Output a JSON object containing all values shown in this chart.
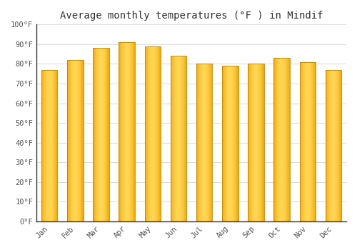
{
  "title": "Average monthly temperatures (°F ) in Mindif",
  "months": [
    "Jan",
    "Feb",
    "Mar",
    "Apr",
    "May",
    "Jun",
    "Jul",
    "Aug",
    "Sep",
    "Oct",
    "Nov",
    "Dec"
  ],
  "values": [
    77,
    82,
    88,
    91,
    89,
    84,
    80,
    79,
    80,
    83,
    81,
    77
  ],
  "bar_color_center": "#FFD04A",
  "bar_color_edge": "#F5A800",
  "bar_edge_dark": "#CC8800",
  "ylim": [
    0,
    100
  ],
  "ytick_step": 10,
  "background_color": "#FFFFFF",
  "grid_color": "#DDDDDD",
  "title_fontsize": 10,
  "tick_fontsize": 7.5,
  "font_family": "monospace"
}
